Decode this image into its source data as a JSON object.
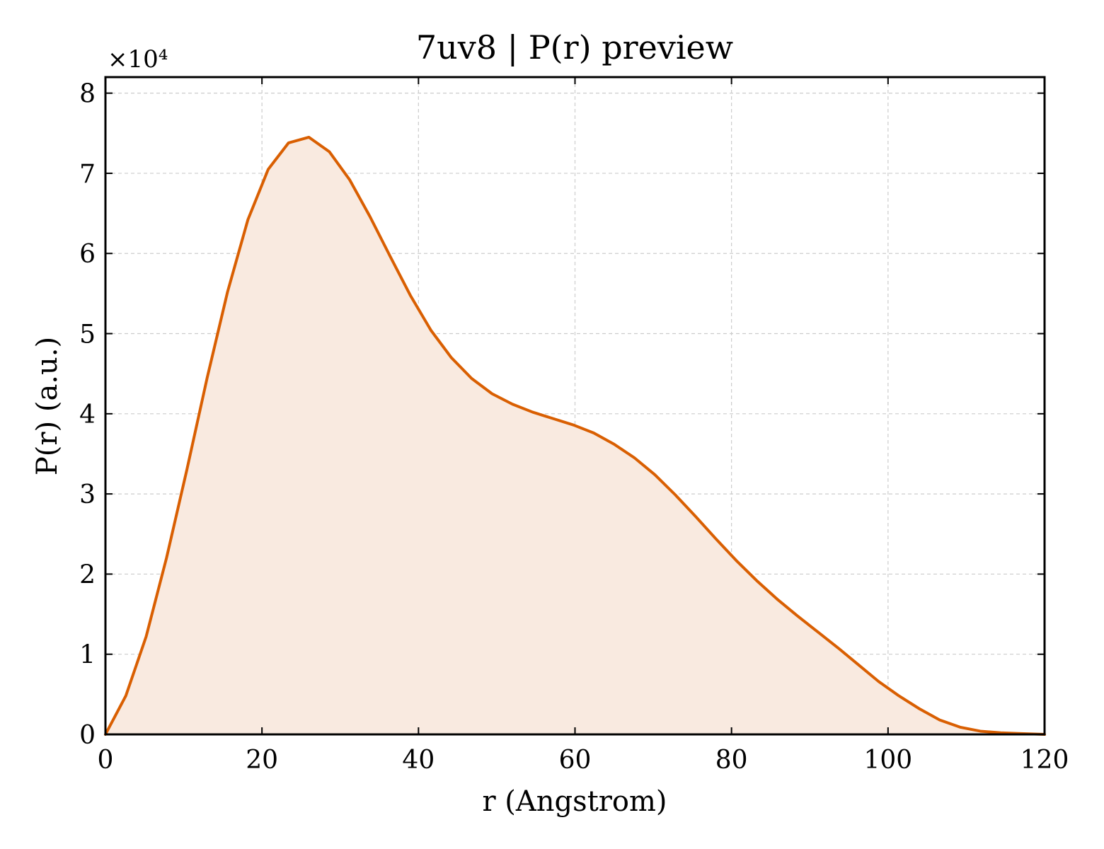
{
  "chart_data": {
    "type": "area",
    "title": "7uv8 | P(r) preview",
    "xlabel": "r (Angstrom)",
    "ylabel": "P(r) (a.u.)",
    "y_multiplier": "×10⁴",
    "xlim": [
      0,
      120
    ],
    "ylim": [
      0,
      8.2
    ],
    "xticks": [
      0,
      20,
      40,
      60,
      80,
      100,
      120
    ],
    "yticks": [
      0,
      1,
      2,
      3,
      4,
      5,
      6,
      7,
      8
    ],
    "grid": true,
    "legend": "none",
    "colors": {
      "line": "#d95f02",
      "fill": "#f9eae0"
    },
    "x": [
      0,
      2.6,
      5.2,
      7.8,
      10.4,
      13.0,
      15.6,
      18.2,
      20.8,
      23.4,
      26.0,
      28.6,
      31.2,
      33.8,
      36.4,
      39.0,
      41.6,
      44.2,
      46.8,
      49.4,
      52.0,
      54.6,
      57.2,
      59.8,
      62.4,
      65.0,
      67.6,
      70.2,
      72.8,
      75.4,
      78.0,
      80.6,
      83.2,
      85.8,
      88.4,
      91.0,
      93.6,
      96.2,
      98.8,
      101.4,
      104.0,
      106.6,
      109.2,
      111.8,
      114.4,
      117.0,
      120.0
    ],
    "y": [
      0.0,
      0.48,
      1.22,
      2.2,
      3.3,
      4.45,
      5.52,
      6.42,
      7.05,
      7.38,
      7.45,
      7.27,
      6.92,
      6.46,
      5.96,
      5.47,
      5.04,
      4.7,
      4.44,
      4.25,
      4.12,
      4.02,
      3.94,
      3.86,
      3.76,
      3.62,
      3.45,
      3.24,
      2.99,
      2.72,
      2.44,
      2.17,
      1.92,
      1.69,
      1.48,
      1.28,
      1.08,
      0.87,
      0.66,
      0.48,
      0.32,
      0.18,
      0.09,
      0.04,
      0.02,
      0.01,
      0.0
    ]
  }
}
